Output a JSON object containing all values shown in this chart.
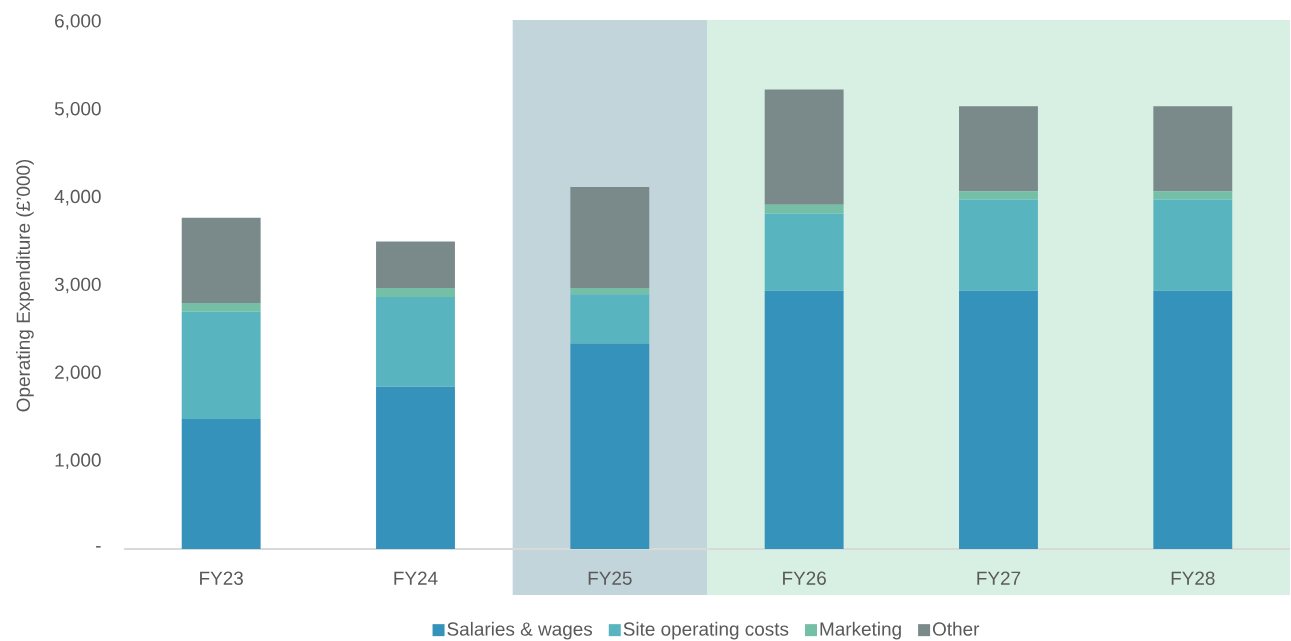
{
  "chart_data": {
    "type": "bar",
    "stacked": true,
    "ylabel": "Operating Expenditure (£’000)",
    "categories": [
      "FY23",
      "FY24",
      "FY25",
      "FY26",
      "FY27",
      "FY28"
    ],
    "series": [
      {
        "name": "Salaries & wages",
        "color": "#3593bb",
        "values": [
          1480,
          1850,
          2340,
          2940,
          2940,
          2940
        ]
      },
      {
        "name": "Site operating costs",
        "color": "#58b5c0",
        "values": [
          1220,
          1020,
          560,
          880,
          1040,
          1040
        ]
      },
      {
        "name": "Marketing",
        "color": "#74bfa5",
        "values": [
          100,
          100,
          70,
          100,
          90,
          90
        ]
      },
      {
        "name": "Other",
        "color": "#7a8a8b",
        "values": [
          970,
          530,
          1150,
          1310,
          970,
          970
        ]
      }
    ],
    "ylim": [
      0,
      6000
    ],
    "yticks": [
      {
        "value": 0,
        "label": "-"
      },
      {
        "value": 1000,
        "label": "1,000"
      },
      {
        "value": 2000,
        "label": "2,000"
      },
      {
        "value": 3000,
        "label": "3,000"
      },
      {
        "value": 4000,
        "label": "4,000"
      },
      {
        "value": 5000,
        "label": "5,000"
      },
      {
        "value": 6000,
        "label": "6,000"
      }
    ],
    "bands": [
      {
        "axis": "x",
        "from": "FY25",
        "to": "FY25",
        "color": "#c2d5db"
      },
      {
        "axis": "x",
        "from": "FY26",
        "to": "FY28",
        "color": "#d8f0e3"
      }
    ],
    "grid": false,
    "legend": "bottom"
  }
}
